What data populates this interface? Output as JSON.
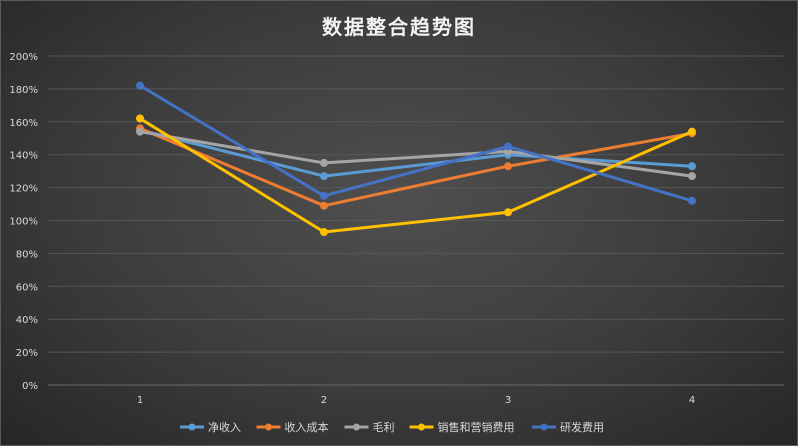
{
  "chart_data": {
    "type": "line",
    "title": "数据整合趋势图",
    "xlabel": "",
    "ylabel": "",
    "categories": [
      "1",
      "2",
      "3",
      "4"
    ],
    "ylim": [
      0,
      200
    ],
    "yticks": [
      "0%",
      "20%",
      "40%",
      "60%",
      "80%",
      "100%",
      "120%",
      "140%",
      "160%",
      "180%",
      "200%"
    ],
    "grid": true,
    "legend_position": "bottom",
    "series": [
      {
        "name": "净收入",
        "color": "#5b9bd5",
        "values": [
          155,
          127,
          140,
          133
        ]
      },
      {
        "name": "收入成本",
        "color": "#ed7d31",
        "values": [
          156,
          109,
          133,
          153
        ]
      },
      {
        "name": "毛利",
        "color": "#a5a5a5",
        "values": [
          154,
          135,
          142,
          127
        ]
      },
      {
        "name": "销售和营销费用",
        "color": "#ffc000",
        "values": [
          162,
          93,
          105,
          154
        ]
      },
      {
        "name": "研发费用",
        "color": "#4472c4",
        "values": [
          182,
          115,
          145,
          112
        ]
      }
    ]
  }
}
